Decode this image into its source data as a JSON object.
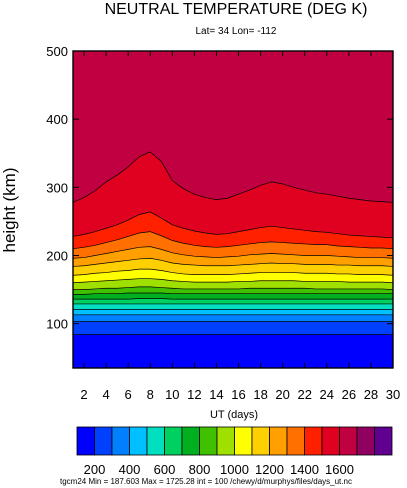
{
  "chart_data": {
    "type": "contour",
    "title": "NEUTRAL TEMPERATURE (DEG K)",
    "subtitle": "Lat= 34 Lon= -112",
    "xlabel": "UT (days)",
    "ylabel": "height (km)",
    "xlim": [
      1,
      30
    ],
    "ylim": [
      35,
      500
    ],
    "x_ticks": [
      2,
      4,
      6,
      8,
      10,
      12,
      14,
      16,
      18,
      20,
      22,
      24,
      26,
      28,
      30
    ],
    "y_ticks": [
      100,
      200,
      300,
      400,
      500
    ],
    "contour_interval": 100,
    "colorbar": {
      "labels": [
        "200",
        "400",
        "600",
        "800",
        "1000",
        "1200",
        "1400",
        "1600"
      ],
      "colors": [
        "#0000ff",
        "#0040ff",
        "#0080ff",
        "#00c0ff",
        "#00e0c0",
        "#00d060",
        "#00b020",
        "#40c000",
        "#a0e000",
        "#ffff00",
        "#ffd000",
        "#ffa000",
        "#ff7000",
        "#ff2000",
        "#e00020",
        "#c00040",
        "#900060",
        "#600090"
      ]
    },
    "contour_levels_km": {
      "days": [
        1,
        2,
        3,
        4,
        5,
        6,
        7,
        8,
        9,
        10,
        11,
        12,
        13,
        14,
        15,
        16,
        17,
        18,
        19,
        20,
        21,
        22,
        23,
        24,
        25,
        26,
        27,
        28,
        29,
        30
      ],
      "levels": [
        {
          "temperature": 300,
          "height": [
            84,
            84,
            84,
            84,
            84,
            84,
            84,
            84,
            84,
            84,
            84,
            84,
            84,
            84,
            84,
            84,
            84,
            84,
            84,
            84,
            84,
            84,
            84,
            84,
            84,
            84,
            84,
            84,
            84,
            84
          ]
        },
        {
          "temperature": 400,
          "height": [
            103,
            103,
            103,
            103,
            103,
            103,
            103,
            103,
            103,
            103,
            103,
            103,
            103,
            103,
            103,
            103,
            103,
            103,
            103,
            103,
            103,
            103,
            103,
            103,
            103,
            103,
            103,
            103,
            103,
            103
          ]
        },
        {
          "temperature": 500,
          "height": [
            113,
            113,
            113,
            113,
            113,
            113,
            113,
            113,
            113,
            113,
            113,
            113,
            113,
            113,
            113,
            113,
            113,
            113,
            113,
            113,
            113,
            113,
            113,
            113,
            113,
            113,
            113,
            113,
            113,
            113
          ]
        },
        {
          "temperature": 600,
          "height": [
            121,
            121,
            121,
            121,
            121,
            121,
            121,
            121,
            121,
            121,
            121,
            121,
            121,
            121,
            121,
            121,
            121,
            121,
            121,
            121,
            121,
            121,
            121,
            121,
            121,
            121,
            121,
            121,
            121,
            121
          ]
        },
        {
          "temperature": 700,
          "height": [
            129,
            129,
            129,
            129,
            129,
            129,
            129,
            129,
            129,
            129,
            129,
            129,
            129,
            129,
            129,
            129,
            129,
            129,
            129,
            129,
            129,
            129,
            129,
            129,
            129,
            129,
            129,
            129,
            129,
            129
          ]
        },
        {
          "temperature": 800,
          "height": [
            136,
            136,
            136,
            136,
            136,
            136,
            137,
            137,
            137,
            136,
            136,
            136,
            136,
            136,
            136,
            136,
            136,
            136,
            136,
            136,
            136,
            136,
            136,
            136,
            136,
            136,
            136,
            136,
            136,
            136
          ]
        },
        {
          "temperature": 900,
          "height": [
            143,
            143,
            144,
            144,
            144,
            145,
            145,
            145,
            145,
            144,
            144,
            144,
            144,
            144,
            144,
            144,
            144,
            144,
            144,
            144,
            144,
            144,
            144,
            144,
            144,
            144,
            144,
            144,
            144,
            144
          ]
        },
        {
          "temperature": 1000,
          "height": [
            150,
            150,
            151,
            152,
            152,
            153,
            154,
            154,
            153,
            152,
            151,
            151,
            151,
            151,
            151,
            151,
            152,
            152,
            152,
            152,
            152,
            152,
            151,
            151,
            151,
            151,
            151,
            151,
            151,
            150
          ]
        },
        {
          "temperature": 1100,
          "height": [
            160,
            161,
            162,
            163,
            164,
            165,
            166,
            166,
            165,
            163,
            162,
            161,
            161,
            161,
            161,
            162,
            162,
            163,
            163,
            163,
            163,
            162,
            162,
            162,
            162,
            161,
            161,
            161,
            161,
            160
          ]
        },
        {
          "temperature": 1200,
          "height": [
            171,
            172,
            174,
            175,
            177,
            178,
            180,
            180,
            178,
            175,
            173,
            172,
            172,
            172,
            172,
            173,
            174,
            175,
            175,
            175,
            175,
            174,
            174,
            174,
            173,
            173,
            172,
            172,
            172,
            171
          ]
        },
        {
          "temperature": 1300,
          "height": [
            184,
            185,
            187,
            189,
            191,
            193,
            195,
            196,
            193,
            189,
            187,
            186,
            185,
            185,
            185,
            186,
            187,
            188,
            189,
            188,
            188,
            187,
            187,
            187,
            186,
            186,
            185,
            185,
            185,
            184
          ]
        },
        {
          "temperature": 1400,
          "height": [
            196,
            197,
            200,
            203,
            206,
            209,
            212,
            213,
            209,
            204,
            201,
            199,
            198,
            197,
            198,
            199,
            201,
            202,
            203,
            202,
            201,
            200,
            200,
            200,
            199,
            198,
            197,
            197,
            197,
            196
          ]
        },
        {
          "temperature": 1500,
          "height": [
            210,
            212,
            215,
            219,
            223,
            228,
            233,
            235,
            229,
            222,
            218,
            215,
            213,
            212,
            213,
            215,
            217,
            219,
            220,
            219,
            218,
            217,
            216,
            216,
            214,
            213,
            212,
            211,
            211,
            210
          ]
        },
        {
          "temperature": 1600,
          "height": [
            228,
            231,
            235,
            240,
            245,
            252,
            260,
            264,
            255,
            245,
            240,
            236,
            233,
            231,
            232,
            235,
            238,
            241,
            243,
            241,
            239,
            237,
            235,
            234,
            232,
            230,
            229,
            228,
            227,
            226
          ]
        },
        {
          "temperature": 1700,
          "height": [
            278,
            285,
            295,
            308,
            318,
            330,
            345,
            352,
            338,
            310,
            298,
            290,
            285,
            282,
            284,
            290,
            296,
            303,
            308,
            305,
            300,
            296,
            292,
            290,
            287,
            284,
            282,
            280,
            279,
            278
          ]
        }
      ]
    }
  },
  "footer": {
    "left": "tgcm24 Min = 187.603  Max = 1725.28  int = 100 /chewy/d/murphys/files/days_ut.nc"
  }
}
